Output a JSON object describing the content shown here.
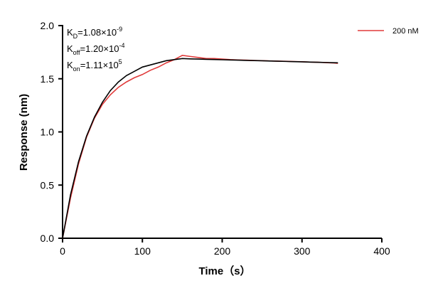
{
  "chart_data": {
    "type": "line",
    "x_label": "Time（s）",
    "y_label": "Response (nm)",
    "x": [
      0,
      10,
      20,
      30,
      40,
      50,
      60,
      70,
      80,
      90,
      100,
      110,
      120,
      130,
      140,
      150,
      160,
      170,
      180,
      190,
      200,
      210,
      220,
      230,
      240,
      250,
      260,
      270,
      280,
      290,
      300,
      310,
      320,
      330,
      340,
      345
    ],
    "series": [
      {
        "name": "200 nM",
        "color": "#e03a3a",
        "values": [
          0,
          0.38,
          0.7,
          0.95,
          1.13,
          1.26,
          1.35,
          1.42,
          1.47,
          1.51,
          1.54,
          1.58,
          1.61,
          1.65,
          1.68,
          1.72,
          1.71,
          1.7,
          1.69,
          1.69,
          1.685,
          1.68,
          1.677,
          1.675,
          1.672,
          1.67,
          1.668,
          1.666,
          1.664,
          1.662,
          1.66,
          1.657,
          1.655,
          1.652,
          1.648,
          1.645
        ]
      },
      {
        "color": "#000000",
        "values": [
          0,
          0.41,
          0.72,
          0.96,
          1.14,
          1.28,
          1.39,
          1.47,
          1.53,
          1.57,
          1.61,
          1.63,
          1.65,
          1.67,
          1.68,
          1.69,
          1.687,
          1.685,
          1.683,
          1.681,
          1.679,
          1.677,
          1.675,
          1.673,
          1.671,
          1.669,
          1.667,
          1.665,
          1.663,
          1.661,
          1.659,
          1.657,
          1.655,
          1.653,
          1.651,
          1.65
        ]
      }
    ],
    "annotations": [
      {
        "symbol": "K",
        "sub": "D",
        "text": "=1.08×10",
        "sup": "-9"
      },
      {
        "symbol": "K",
        "sub": "off",
        "text": "=1.20×10",
        "sup": "-4"
      },
      {
        "symbol": "K",
        "sub": "on",
        "text": "=1.11×10",
        "sup": "5"
      }
    ],
    "xlim": [
      0,
      400
    ],
    "xticks": [
      0,
      100,
      200,
      300,
      400
    ],
    "ylim": [
      0,
      2
    ],
    "yticks": [
      {
        "value": 0,
        "label": "0.0"
      },
      0.5,
      {
        "value": 1,
        "label": "1.0"
      },
      1.5,
      {
        "value": 2,
        "label": "2.0"
      }
    ],
    "legend": "upper-right",
    "grid": false
  }
}
